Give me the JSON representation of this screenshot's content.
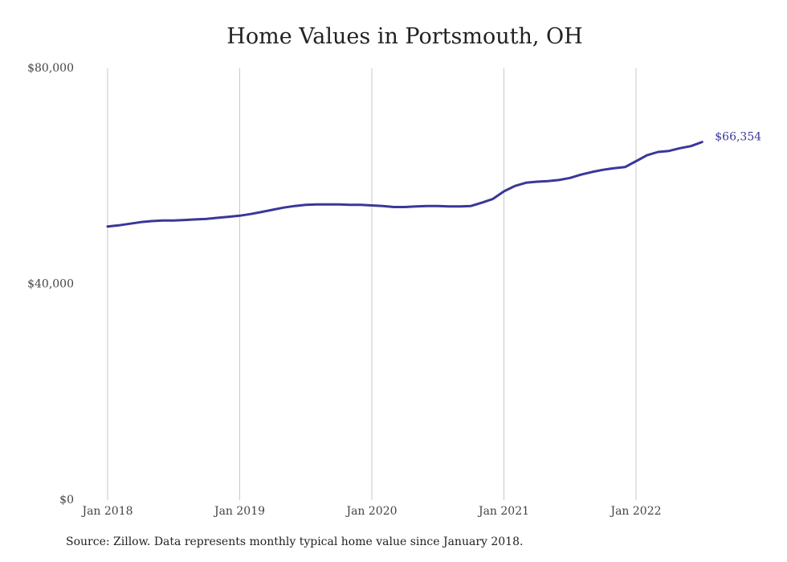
{
  "chart_data": {
    "type": "line",
    "title": "Home Values in Portsmouth, OH",
    "xlabel": "",
    "ylabel": "",
    "ylim": [
      0,
      80000
    ],
    "y_ticks": [
      "$0",
      "$40,000",
      "$80,000"
    ],
    "y_tick_values": [
      0,
      40000,
      80000
    ],
    "x_ticks": [
      "Jan 2018",
      "Jan 2019",
      "Jan 2020",
      "Jan 2021",
      "Jan 2022"
    ],
    "x_tick_values": [
      "2018-01",
      "2019-01",
      "2020-01",
      "2021-01",
      "2022-01"
    ],
    "grid": "vertical",
    "series": [
      {
        "color": "#3b3799",
        "x": [
          "2018-01",
          "2018-02",
          "2018-03",
          "2018-04",
          "2018-05",
          "2018-06",
          "2018-07",
          "2018-08",
          "2018-09",
          "2018-10",
          "2018-11",
          "2018-12",
          "2019-01",
          "2019-02",
          "2019-03",
          "2019-04",
          "2019-05",
          "2019-06",
          "2019-07",
          "2019-08",
          "2019-09",
          "2019-10",
          "2019-11",
          "2019-12",
          "2020-01",
          "2020-02",
          "2020-03",
          "2020-04",
          "2020-05",
          "2020-06",
          "2020-07",
          "2020-08",
          "2020-09",
          "2020-10",
          "2020-11",
          "2020-12",
          "2021-01",
          "2021-02",
          "2021-03",
          "2021-04",
          "2021-05",
          "2021-06",
          "2021-07",
          "2021-08",
          "2021-09",
          "2021-10",
          "2021-11",
          "2021-12",
          "2022-01",
          "2022-02",
          "2022-03",
          "2022-04",
          "2022-05",
          "2022-06",
          "2022-07"
        ],
        "values": [
          50700,
          50900,
          51200,
          51500,
          51700,
          51800,
          51800,
          51900,
          52000,
          52100,
          52300,
          52500,
          52700,
          53000,
          53400,
          53800,
          54200,
          54500,
          54700,
          54800,
          54800,
          54800,
          54700,
          54700,
          54600,
          54500,
          54300,
          54300,
          54400,
          54500,
          54500,
          54400,
          54400,
          54500,
          55100,
          55800,
          57200,
          58200,
          58800,
          59000,
          59100,
          59300,
          59700,
          60300,
          60800,
          61200,
          61500,
          61700,
          62800,
          63900,
          64500,
          64700,
          65200,
          65600,
          66354
        ]
      }
    ],
    "end_label": "$66,354"
  },
  "source_text": "Source: Zillow. Data represents monthly typical home value since January 2018."
}
